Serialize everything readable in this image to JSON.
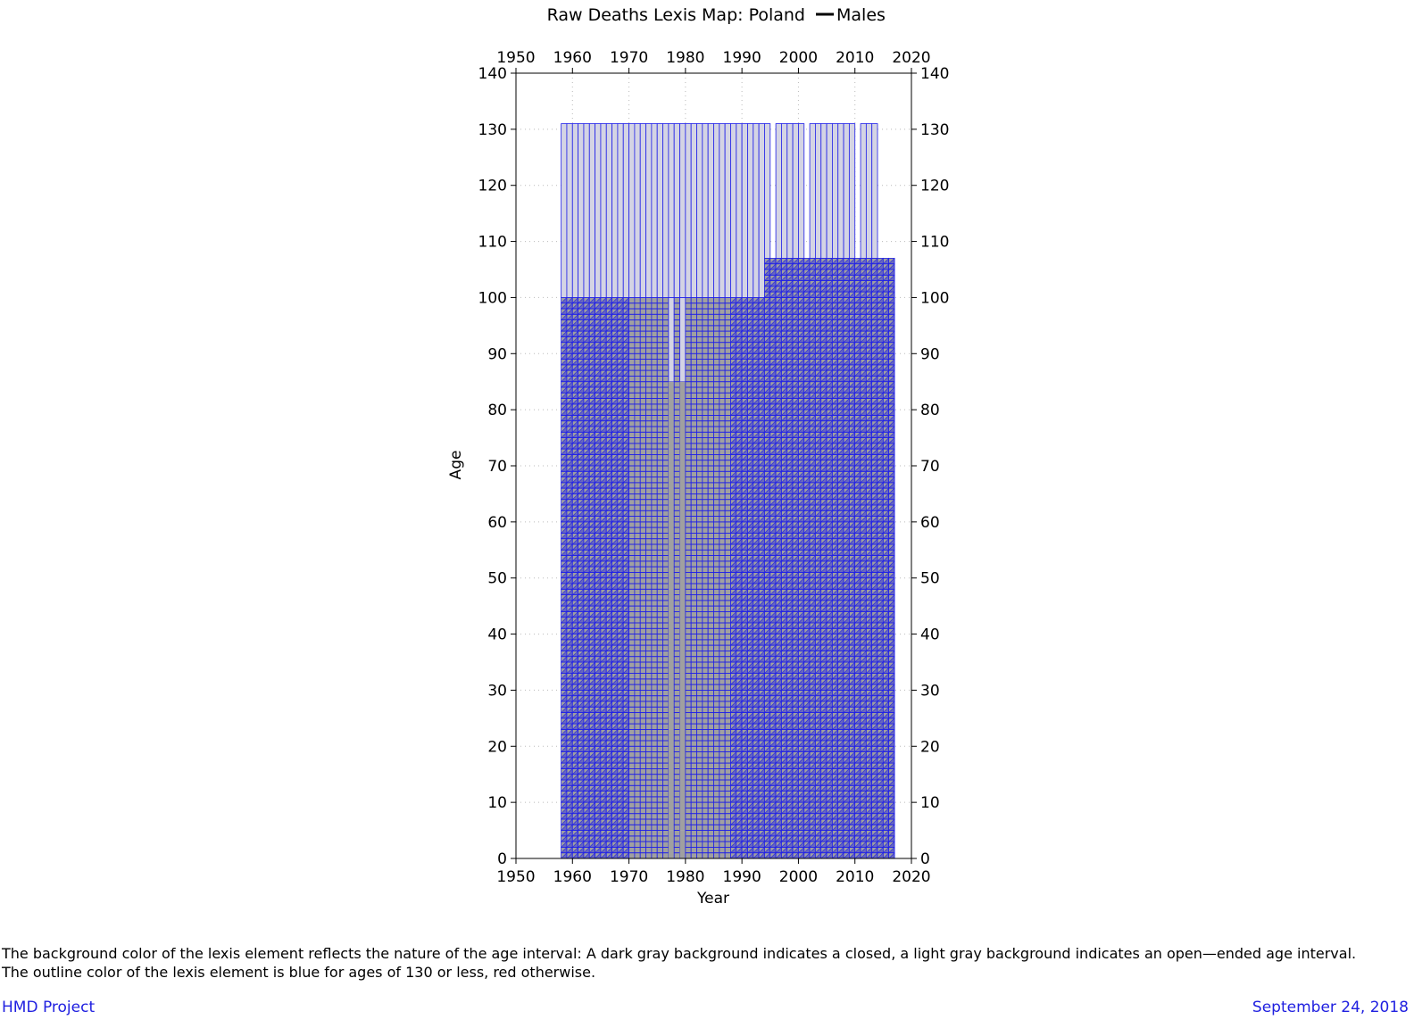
{
  "chart_data": {
    "type": "heatmap",
    "title_prefix": "Raw Deaths Lexis Map: Poland ",
    "title_series": "Males",
    "xlabel": "Year",
    "ylabel": "Age",
    "xlim": [
      1950,
      2020
    ],
    "ylim": [
      0,
      140
    ],
    "x_ticks": [
      1950,
      1960,
      1970,
      1980,
      1990,
      2000,
      2010,
      2020
    ],
    "y_ticks": [
      0,
      10,
      20,
      30,
      40,
      50,
      60,
      70,
      80,
      90,
      100,
      110,
      120,
      130,
      140
    ],
    "grid": true,
    "colors": {
      "closed_interval_bg": "#a0a0a0",
      "open_interval_bg": "#d4d4e4",
      "outline": "#2020e8",
      "triangle_fill": "#3a3ad8"
    },
    "year_range": [
      1958,
      2016
    ],
    "closed_age_max": [
      {
        "years": [
          1958,
          1993
        ],
        "age": 100
      },
      {
        "years": [
          1994,
          2016
        ],
        "age": 107
      }
    ],
    "open_interval_top_age": 131,
    "open_interval_gaps": [
      1995,
      2001,
      2010,
      2014,
      2015,
      2016
    ],
    "lexis_triangles_periods": [
      [
        1958,
        1969
      ],
      [
        1988,
        2016
      ]
    ],
    "lexis_squares_periods": [
      [
        1970,
        1987
      ]
    ],
    "gap_column_years": [
      1977,
      1979
    ],
    "gap_column_age_range": [
      5,
      85
    ]
  },
  "caption": {
    "line1": "The background color of the lexis element reflects the nature of the age interval: A dark gray background indicates a closed, a light gray background indicates an open—ended age interval.",
    "line2": "The outline color of the lexis element is blue for ages of 130 or less, red otherwise."
  },
  "footer": {
    "left": "HMD Project",
    "right": "September 24, 2018"
  }
}
